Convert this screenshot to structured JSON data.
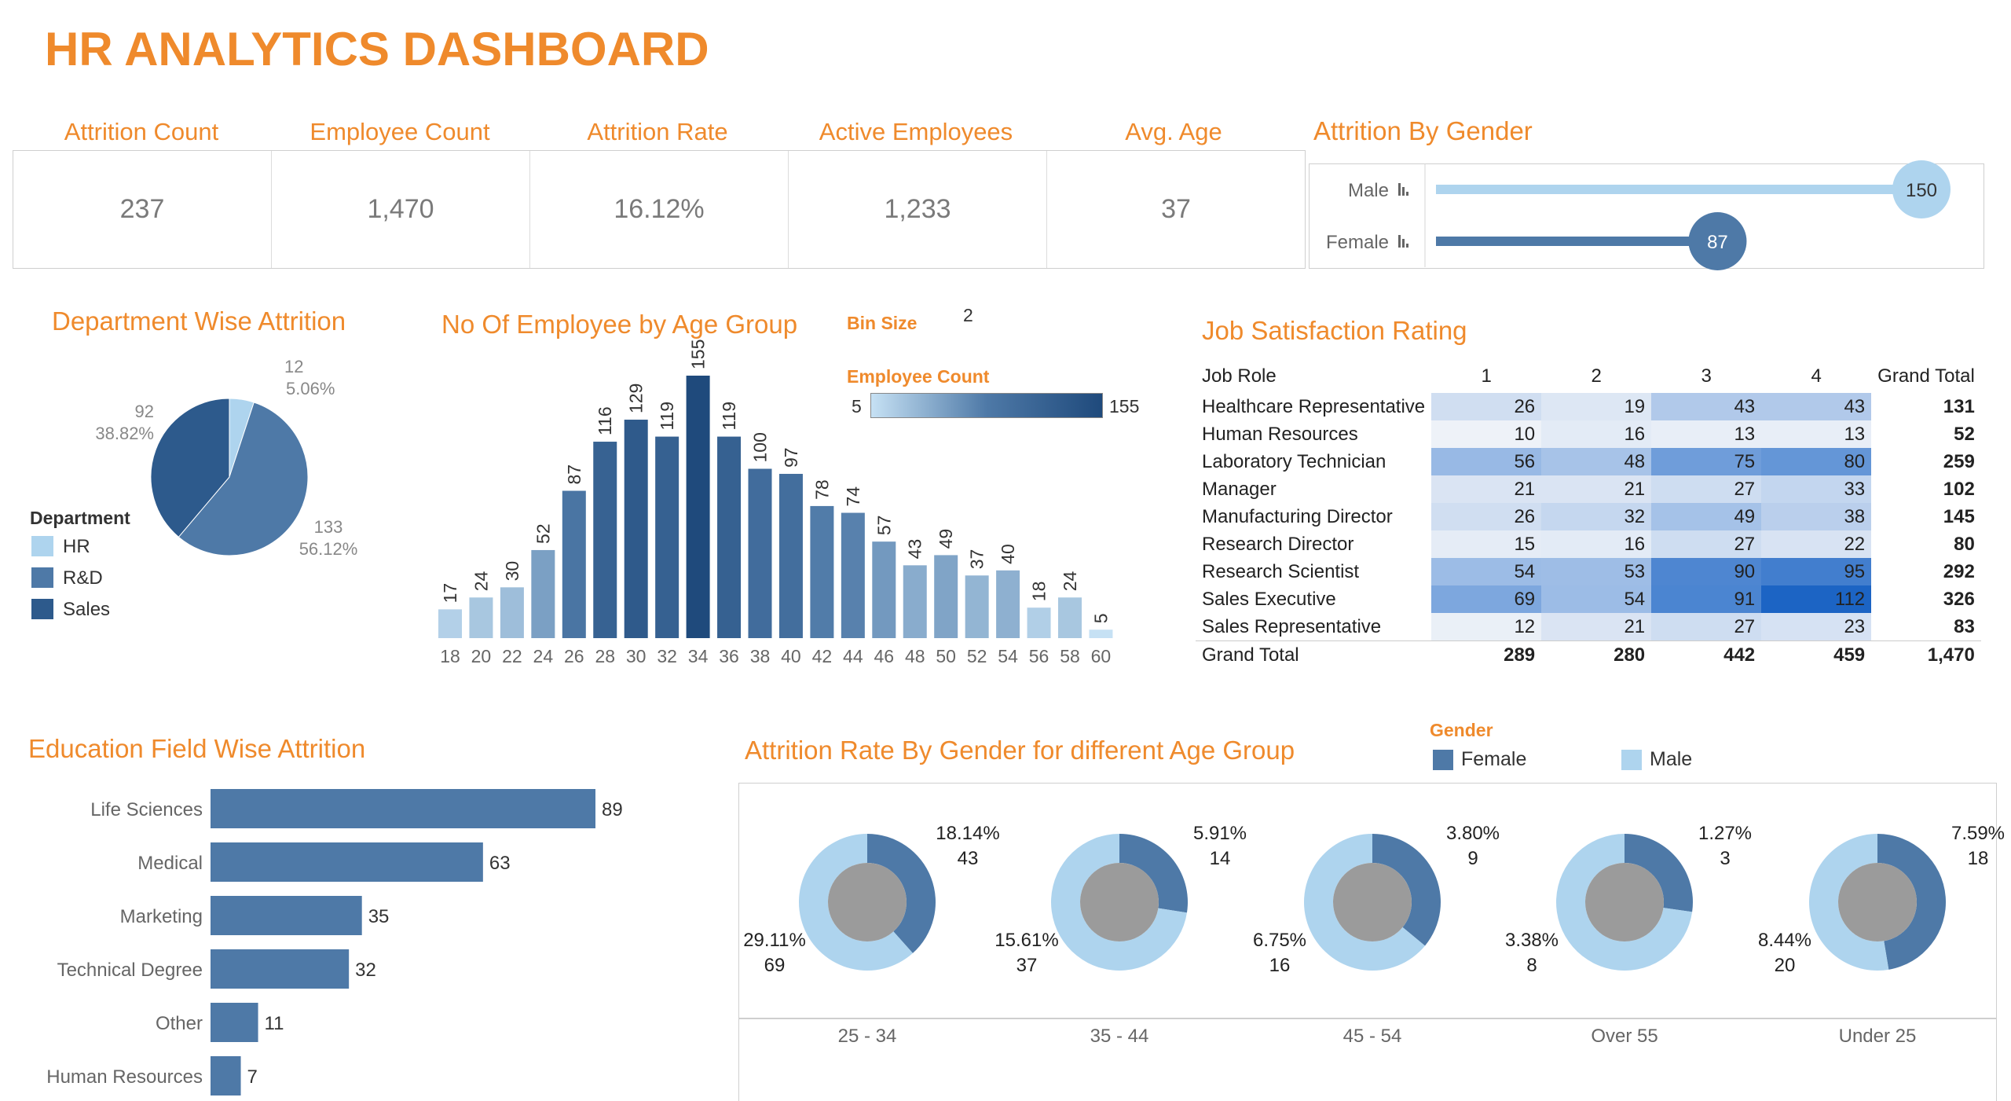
{
  "dashboard": {
    "title": "HR ANALYTICS DASHBOARD",
    "colors": {
      "accent": "#ef8a2c",
      "dark_blue": "#2d5a8c",
      "mid_blue": "#4e79a7",
      "light_blue": "#aed4ee",
      "gray": "#9b9b9b"
    }
  },
  "kpis": [
    {
      "label": "Attrition Count",
      "value": "237"
    },
    {
      "label": "Employee Count",
      "value": "1,470"
    },
    {
      "label": "Attrition Rate",
      "value": "16.12%"
    },
    {
      "label": "Active Employees",
      "value": "1,233"
    },
    {
      "label": "Avg. Age",
      "value": "37"
    }
  ],
  "chart_data": [
    {
      "id": "attrition_by_gender",
      "type": "bar",
      "title": "Attrition By Gender",
      "categories": [
        "Male",
        "Female"
      ],
      "values": [
        150,
        87
      ],
      "value_labels": [
        "150",
        "87"
      ],
      "xlim": [
        0,
        150
      ]
    },
    {
      "id": "department_wise_attrition",
      "type": "pie",
      "title": "Department Wise Attrition",
      "legend_title": "Department",
      "categories": [
        "HR",
        "R&D",
        "Sales"
      ],
      "values": [
        12,
        133,
        92
      ],
      "percent_labels": [
        "5.06%",
        "56.12%",
        "38.82%"
      ],
      "value_labels": [
        "12",
        "133",
        "92"
      ],
      "colors": [
        "#aed4ee",
        "#4e79a7",
        "#2d5a8c"
      ]
    },
    {
      "id": "employees_by_age_group",
      "type": "bar",
      "title": "No Of Employee by Age Group",
      "bin_size_label": "Bin Size",
      "bin_size": "2",
      "legend_title": "Employee Count",
      "legend_min": "5",
      "legend_max": "155",
      "categories": [
        "18",
        "20",
        "22",
        "24",
        "26",
        "28",
        "30",
        "32",
        "34",
        "36",
        "38",
        "40",
        "42",
        "44",
        "46",
        "48",
        "50",
        "52",
        "54",
        "56",
        "58",
        "60"
      ],
      "values": [
        17,
        24,
        30,
        52,
        87,
        116,
        129,
        119,
        155,
        119,
        100,
        97,
        78,
        74,
        57,
        43,
        49,
        37,
        40,
        18,
        24,
        5
      ],
      "value_labels": [
        "17",
        "24",
        "30",
        "52",
        "87",
        "116",
        "129",
        "119",
        "155",
        "119",
        "100",
        "97",
        "78",
        "74",
        "57",
        "43",
        "49",
        "37",
        "40",
        "18",
        "24",
        "5"
      ],
      "ylim": [
        0,
        155
      ]
    },
    {
      "id": "job_satisfaction_rating",
      "type": "heatmap",
      "title": "Job Satisfaction Rating",
      "row_header": "Job Role",
      "columns": [
        "1",
        "2",
        "3",
        "4"
      ],
      "grand_total_label": "Grand Total",
      "rows": [
        {
          "role": "Healthcare Representative",
          "values": [
            "26",
            "19",
            "43",
            "43"
          ],
          "total": "131"
        },
        {
          "role": "Human Resources",
          "values": [
            "10",
            "16",
            "13",
            "13"
          ],
          "total": "52"
        },
        {
          "role": "Laboratory Technician",
          "values": [
            "56",
            "48",
            "75",
            "80"
          ],
          "total": "259"
        },
        {
          "role": "Manager",
          "values": [
            "21",
            "21",
            "27",
            "33"
          ],
          "total": "102"
        },
        {
          "role": "Manufacturing Director",
          "values": [
            "26",
            "32",
            "49",
            "38"
          ],
          "total": "145"
        },
        {
          "role": "Research Director",
          "values": [
            "15",
            "16",
            "27",
            "22"
          ],
          "total": "80"
        },
        {
          "role": "Research Scientist",
          "values": [
            "54",
            "53",
            "90",
            "95"
          ],
          "total": "292"
        },
        {
          "role": "Sales Executive",
          "values": [
            "69",
            "54",
            "91",
            "112"
          ],
          "total": "326"
        },
        {
          "role": "Sales Representative",
          "values": [
            "12",
            "21",
            "27",
            "23"
          ],
          "total": "83"
        }
      ],
      "totals_row": {
        "label": "Grand Total",
        "values": [
          "289",
          "280",
          "442",
          "459"
        ],
        "total": "1,470"
      }
    },
    {
      "id": "education_field_wise_attrition",
      "type": "bar",
      "title": "Education Field Wise Attrition",
      "categories": [
        "Life Sciences",
        "Medical",
        "Marketing",
        "Technical Degree",
        "Other",
        "Human Resources"
      ],
      "values": [
        89,
        63,
        35,
        32,
        11,
        7
      ],
      "value_labels": [
        "89",
        "63",
        "35",
        "32",
        "11",
        "7"
      ],
      "xlim": [
        0,
        89
      ]
    },
    {
      "id": "attrition_rate_by_gender_age_group",
      "type": "pie",
      "title": "Attrition Rate By Gender for different Age Group",
      "legend_title": "Gender",
      "legend": [
        "Female",
        "Male"
      ],
      "colors": [
        "#4e79a7",
        "#aed4ee"
      ],
      "groups": [
        {
          "label": "25 - 34",
          "female_pct": "18.14%",
          "female_count": "43",
          "male_pct": "29.11%",
          "male_count": "69",
          "female": 43,
          "male": 69
        },
        {
          "label": "35 - 44",
          "female_pct": "5.91%",
          "female_count": "14",
          "male_pct": "15.61%",
          "male_count": "37",
          "female": 14,
          "male": 37
        },
        {
          "label": "45 - 54",
          "female_pct": "3.80%",
          "female_count": "9",
          "male_pct": "6.75%",
          "male_count": "16",
          "female": 9,
          "male": 16
        },
        {
          "label": "Over 55",
          "female_pct": "1.27%",
          "female_count": "3",
          "male_pct": "3.38%",
          "male_count": "8",
          "female": 3,
          "male": 8
        },
        {
          "label": "Under 25",
          "female_pct": "7.59%",
          "female_count": "18",
          "male_pct": "8.44%",
          "male_count": "20",
          "female": 18,
          "male": 20
        }
      ]
    }
  ]
}
